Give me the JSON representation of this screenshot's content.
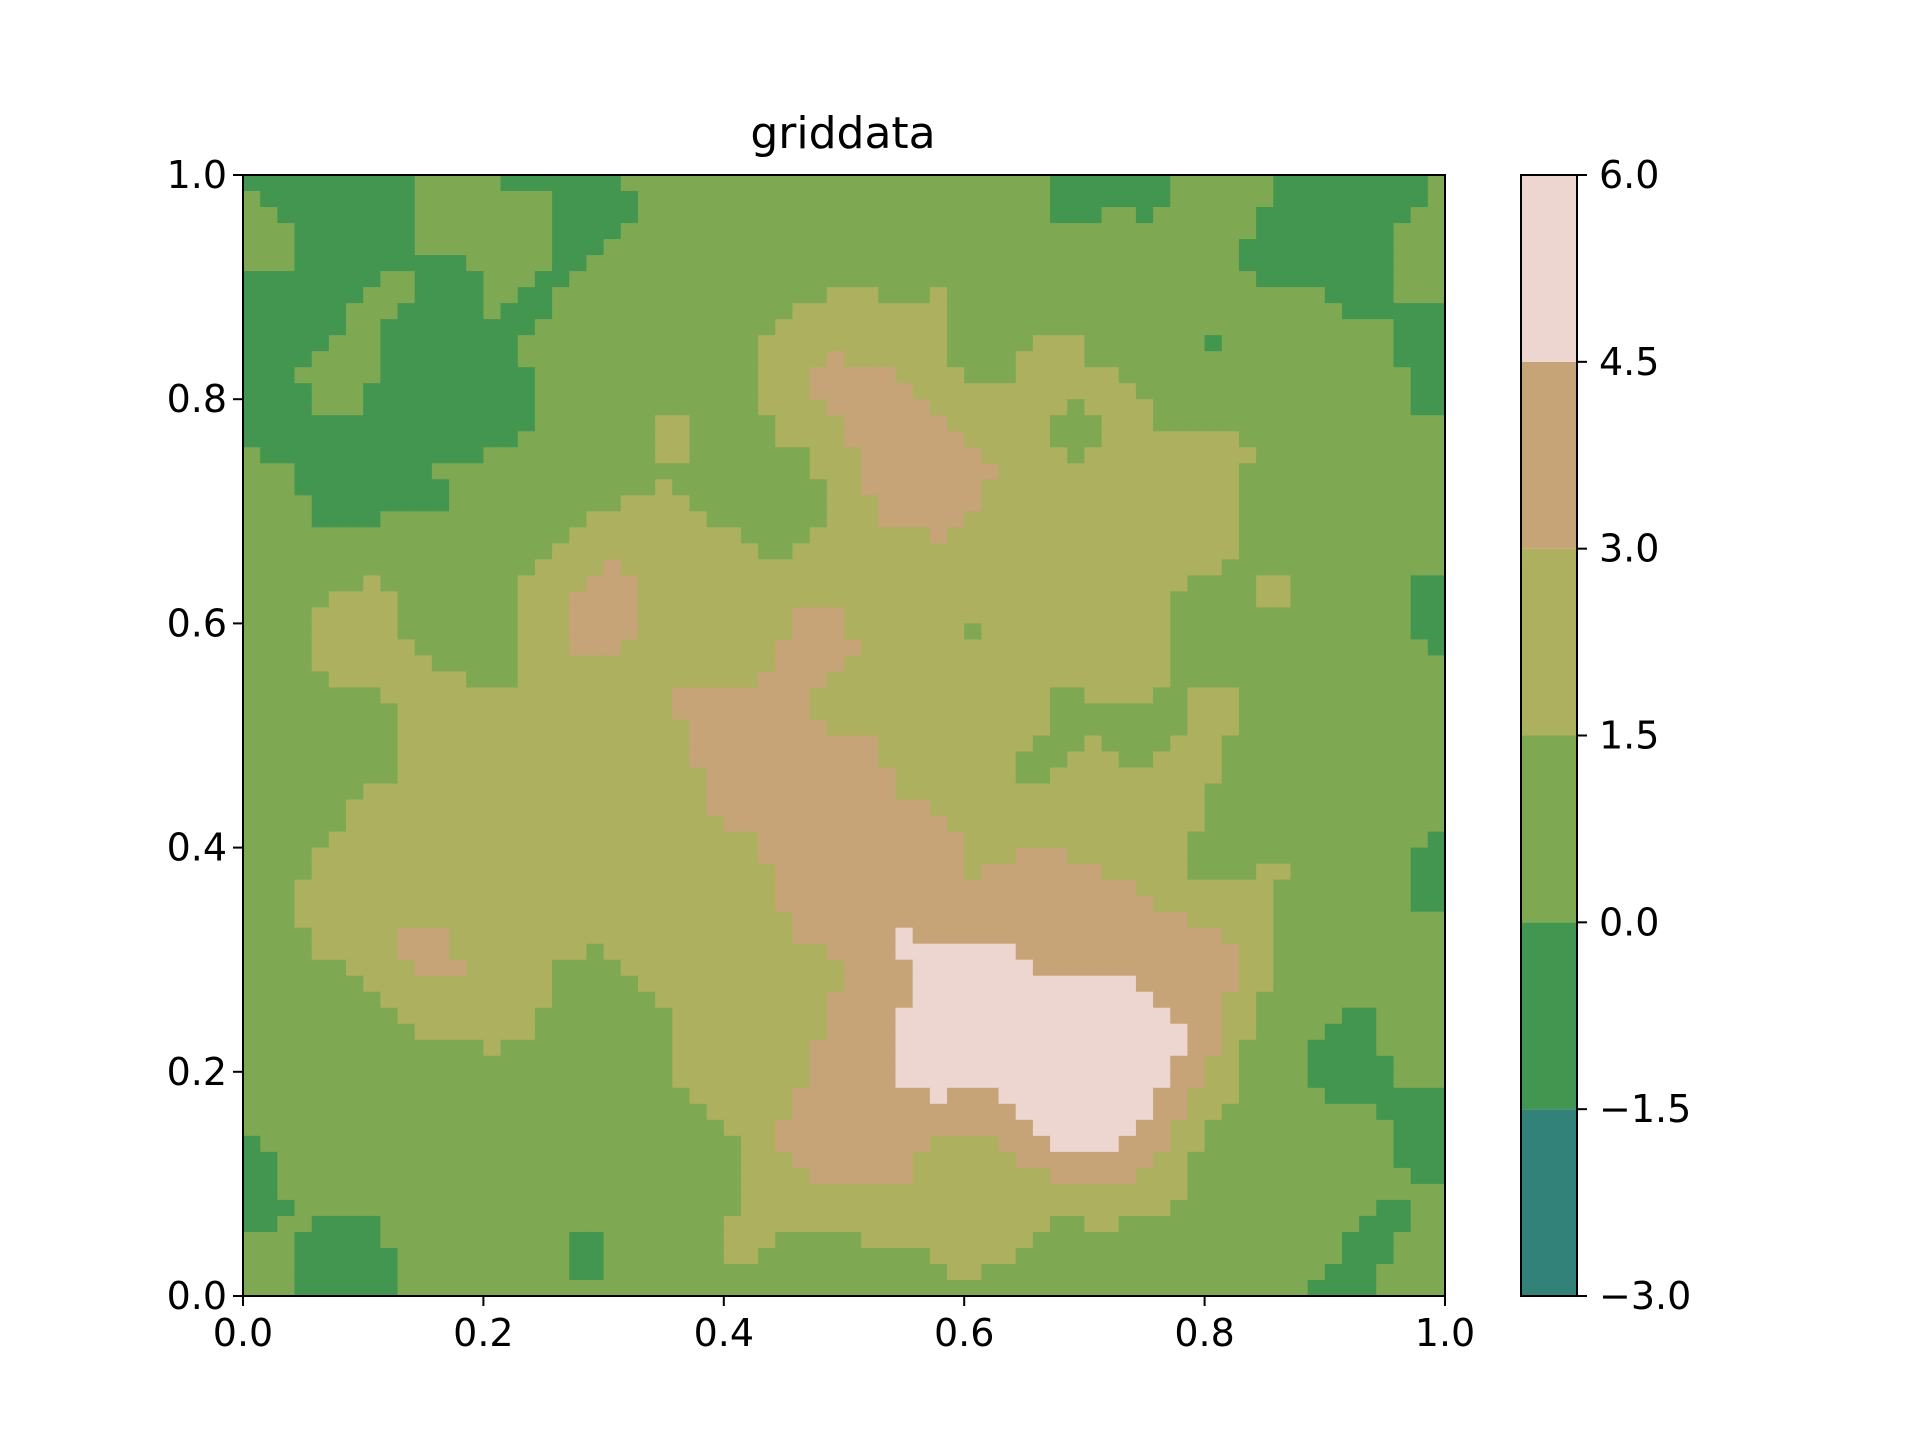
{
  "chart_data": {
    "type": "contourf",
    "title": "griddata",
    "xlabel": "",
    "ylabel": "",
    "xlim": [
      0.0,
      1.0
    ],
    "ylim": [
      0.0,
      1.0
    ],
    "x_ticks": [
      "0.0",
      "0.2",
      "0.4",
      "0.6",
      "0.8",
      "1.0"
    ],
    "y_ticks": [
      "0.0",
      "0.2",
      "0.4",
      "0.6",
      "0.8",
      "1.0"
    ],
    "levels": [
      -3.0,
      -1.5,
      0.0,
      1.5,
      3.0,
      4.5,
      6.0
    ],
    "colorbar_ticks": [
      "−3.0",
      "−1.5",
      "0.0",
      "1.5",
      "3.0",
      "4.5",
      "6.0"
    ],
    "level_colors": [
      "#33827a",
      "#42964f",
      "#7fa852",
      "#adb05e",
      "#c6a478",
      "#edd5d0"
    ],
    "grid": false,
    "colorbar": "right",
    "peaks": [
      {
        "x": 0.52,
        "y": 0.38,
        "h": 2.0,
        "s": 0.28
      },
      {
        "x": 0.4,
        "y": 0.62,
        "h": 1.3,
        "s": 0.16
      },
      {
        "x": 0.5,
        "y": 0.86,
        "h": 1.0,
        "s": 0.12
      },
      {
        "x": 0.12,
        "y": 0.38,
        "h": 1.1,
        "s": 0.12
      },
      {
        "x": 0.76,
        "y": 0.7,
        "h": 1.3,
        "s": 0.11
      },
      {
        "x": 0.66,
        "y": 0.2,
        "h": 1.6,
        "s": 0.12
      },
      {
        "x": 0.56,
        "y": 0.36,
        "h": 1.6,
        "s": 0.08
      },
      {
        "x": 0.72,
        "y": 0.24,
        "h": 2.2,
        "s": 0.07
      },
      {
        "x": 0.72,
        "y": 0.17,
        "h": 1.8,
        "s": 0.05
      },
      {
        "x": 0.56,
        "y": 0.21,
        "h": 1.6,
        "s": 0.06
      },
      {
        "x": 0.53,
        "y": 0.76,
        "h": 2.0,
        "s": 0.06
      },
      {
        "x": 0.3,
        "y": 0.63,
        "h": 1.2,
        "s": 0.05
      },
      {
        "x": 0.48,
        "y": 0.12,
        "h": 1.3,
        "s": 0.06
      },
      {
        "x": 0.15,
        "y": 0.31,
        "h": 1.5,
        "s": 0.05
      },
      {
        "x": 0.46,
        "y": 0.48,
        "h": 1.1,
        "s": 0.06
      },
      {
        "x": 0.79,
        "y": 0.32,
        "h": 1.1,
        "s": 0.05
      },
      {
        "x": 0.1,
        "y": 0.6,
        "h": 1.1,
        "s": 0.05
      },
      {
        "x": 0.44,
        "y": 0.72,
        "h": -2.0,
        "s": 0.05
      },
      {
        "x": 0.18,
        "y": 0.75,
        "h": -1.0,
        "s": 0.08
      },
      {
        "x": 0.6,
        "y": 0.46,
        "h": -1.0,
        "s": 0.05
      },
      {
        "x": 0.9,
        "y": 0.2,
        "h": -0.8,
        "s": 0.05
      }
    ]
  }
}
